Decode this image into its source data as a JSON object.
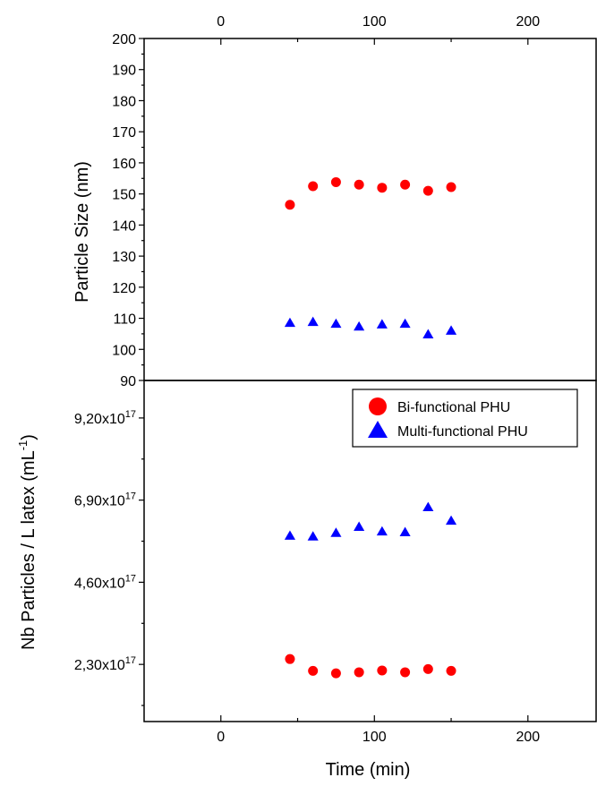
{
  "chart_data": [
    {
      "type": "scatter",
      "panel": "top",
      "title": "",
      "xlabel": "",
      "ylabel": "Particle Size (nm)",
      "xlim": [
        -50,
        245
      ],
      "ylim": [
        90,
        200
      ],
      "x_ticks": [
        "0",
        "100",
        "200"
      ],
      "x_tick_values": [
        0,
        100,
        200
      ],
      "x_ticks_position": "top",
      "y_ticks": [
        "90",
        "100",
        "110",
        "120",
        "130",
        "140",
        "150",
        "160",
        "170",
        "180",
        "190",
        "200"
      ],
      "y_tick_values": [
        90,
        100,
        110,
        120,
        130,
        140,
        150,
        160,
        170,
        180,
        190,
        200
      ],
      "grid": false,
      "series": [
        {
          "name": "Bi-functional PHU",
          "marker": "circle",
          "color": "#ff0000",
          "x": [
            45,
            60,
            75,
            90,
            105,
            120,
            135,
            150
          ],
          "y": [
            146.5,
            152.5,
            153.8,
            153.0,
            152.0,
            153.0,
            151.0,
            152.2
          ]
        },
        {
          "name": "Multi-functional PHU",
          "marker": "triangle",
          "color": "#0000ff",
          "x": [
            45,
            60,
            75,
            90,
            105,
            120,
            135,
            150
          ],
          "y": [
            108.5,
            108.8,
            108.2,
            107.3,
            108.0,
            108.2,
            104.8,
            106.0
          ]
        }
      ]
    },
    {
      "type": "scatter",
      "panel": "bottom",
      "title": "",
      "xlabel": "Time (min)",
      "ylabel": "Nb Particles / L latex (mL",
      "ylabel_superscript": "-1",
      "ylabel_suffix": ")",
      "xlim": [
        -50,
        245
      ],
      "ylim": [
        7e+16,
        1.025e+18
      ],
      "x_ticks": [
        "0",
        "100",
        "200"
      ],
      "x_tick_values": [
        0,
        100,
        200
      ],
      "y_ticks": [
        {
          "mantissa": "2,30x10",
          "exponent": "17",
          "value": 2.3e+17
        },
        {
          "mantissa": "4,60x10",
          "exponent": "17",
          "value": 4.6e+17
        },
        {
          "mantissa": "6,90x10",
          "exponent": "17",
          "value": 6.9e+17
        },
        {
          "mantissa": "9,20x10",
          "exponent": "17",
          "value": 9.2e+17
        }
      ],
      "grid": false,
      "legend": {
        "placement": "top-right",
        "entries": [
          "Bi-functional PHU",
          "Multi-functional PHU"
        ]
      },
      "series": [
        {
          "name": "Bi-functional PHU",
          "marker": "circle",
          "color": "#ff0000",
          "x": [
            45,
            60,
            75,
            90,
            105,
            120,
            135,
            150
          ],
          "y": [
            2.45e+17,
            2.12e+17,
            2.05e+17,
            2.08e+17,
            2.13e+17,
            2.08e+17,
            2.17e+17,
            2.12e+17
          ]
        },
        {
          "name": "Multi-functional PHU",
          "marker": "triangle",
          "color": "#0000ff",
          "x": [
            45,
            60,
            75,
            90,
            105,
            120,
            135,
            150
          ],
          "y": [
            5.9e+17,
            5.88e+17,
            5.98e+17,
            6.15e+17,
            6.02e+17,
            6e+17,
            6.7e+17,
            6.32e+17
          ]
        }
      ]
    }
  ]
}
